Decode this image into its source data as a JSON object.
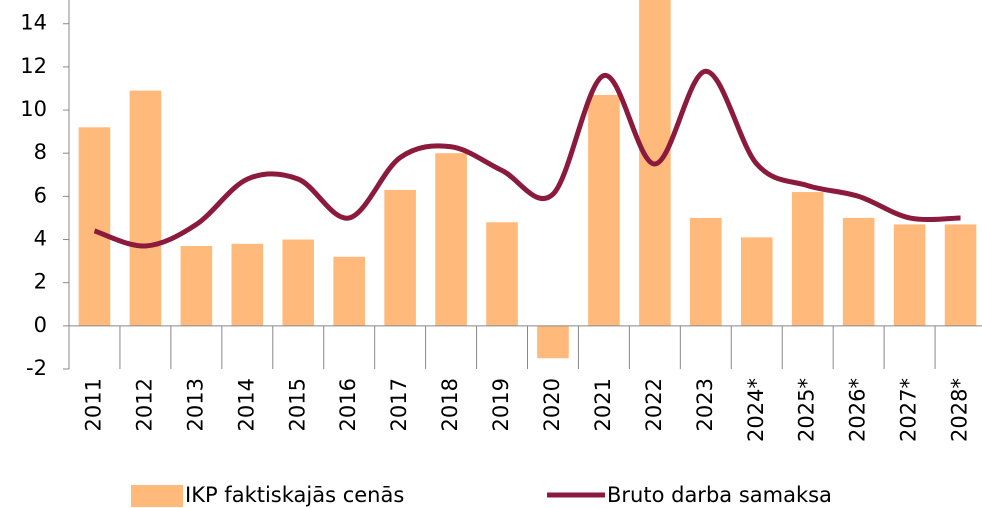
{
  "chart_data": {
    "type": "bar_line",
    "categories": [
      "2011",
      "2012",
      "2013",
      "2014",
      "2015",
      "2016",
      "2017",
      "2018",
      "2019",
      "2020",
      "2021",
      "2022",
      "2023",
      "2024*",
      "2025*",
      "2026*",
      "2027*",
      "2028*"
    ],
    "series": [
      {
        "name": "IKP faktiskajās cenās",
        "type": "bar",
        "color": "#ffb97a",
        "values": [
          9.2,
          10.9,
          3.7,
          3.8,
          4.0,
          3.2,
          6.3,
          8.0,
          4.8,
          -1.5,
          10.7,
          15.5,
          5.0,
          4.1,
          6.2,
          5.0,
          4.7,
          4.7
        ]
      },
      {
        "name": "Bruto darba samaksa",
        "type": "line",
        "color": "#8b1a3c",
        "values": [
          4.4,
          3.7,
          4.7,
          6.8,
          6.8,
          5.0,
          7.8,
          8.3,
          7.2,
          6.1,
          11.6,
          7.5,
          11.8,
          7.5,
          6.5,
          6.0,
          5.0,
          5.0
        ]
      }
    ],
    "ylim": [
      -2,
      15.1
    ],
    "yticks": [
      -2,
      0,
      2,
      4,
      6,
      8,
      10,
      12,
      14
    ]
  }
}
